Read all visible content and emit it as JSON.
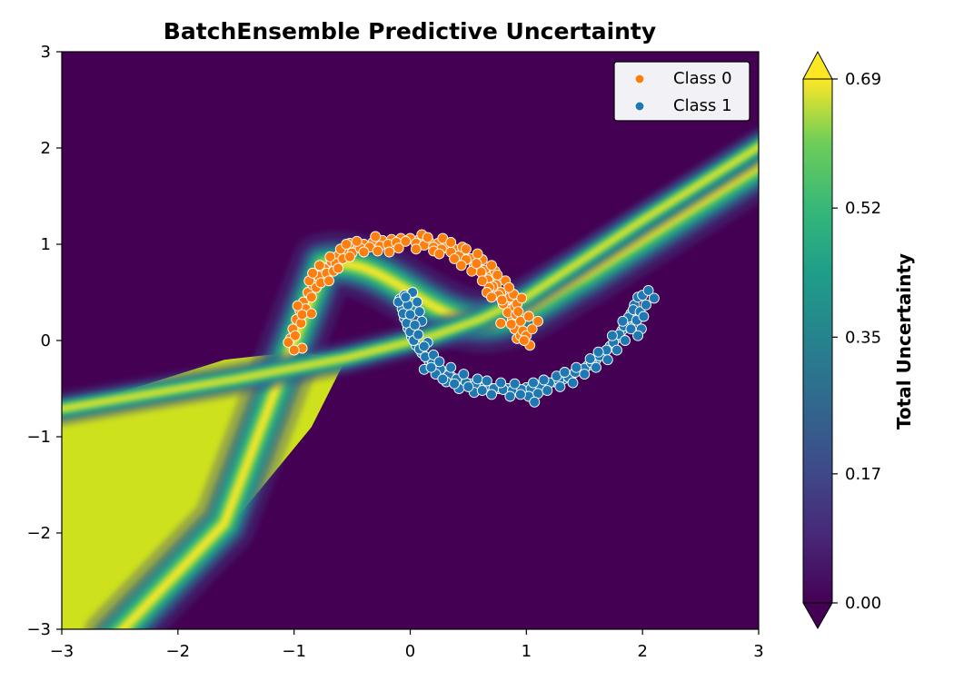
{
  "chart_data": {
    "type": "scatter",
    "title": "BatchEnsemble Predictive Uncertainty",
    "xlabel": "",
    "ylabel": "",
    "xlim": [
      -3,
      3
    ],
    "ylim": [
      -3,
      3
    ],
    "xticks": [
      -3,
      -2,
      -1,
      0,
      1,
      2,
      3
    ],
    "yticks": [
      -3,
      -2,
      -1,
      0,
      1,
      2,
      3
    ],
    "xtick_labels": [
      "−3",
      "−2",
      "−1",
      "0",
      "1",
      "2",
      "3"
    ],
    "ytick_labels": [
      "−3",
      "−2",
      "−1",
      "0",
      "1",
      "2",
      "3"
    ],
    "background": {
      "type": "filled-contour",
      "colormap": "viridis",
      "quantity": "Total Uncertainty",
      "range": [
        0.0,
        0.69
      ],
      "boundary": "y ≈ 0.5 − 0.3·sin(2.5·x) near the moons; linear extensions toward (3, 1.8) and (−3, −4); separate near-constant region at ~0.63 in the lower-left",
      "colors": [
        "#440154",
        "#3b528b",
        "#21918c",
        "#5ec962",
        "#fde725"
      ]
    },
    "colorbar": {
      "label": "Total Uncertainty",
      "ticks": [
        0.0,
        0.17,
        0.35,
        0.52,
        0.69
      ],
      "tick_labels": [
        "0.00",
        "0.17",
        "0.35",
        "0.52",
        "0.69"
      ],
      "extend": "both"
    },
    "legend": {
      "position": "top-right",
      "entries": [
        "Class 0",
        "Class 1"
      ]
    },
    "series": [
      {
        "name": "Class 0",
        "color": "#ff7f0e",
        "points": [
          [
            -1.03,
            0.02
          ],
          [
            -1.01,
            0.12
          ],
          [
            -0.98,
            0.22
          ],
          [
            -0.95,
            0.31
          ],
          [
            -0.92,
            0.4
          ],
          [
            -0.88,
            0.5
          ],
          [
            -0.84,
            0.58
          ],
          [
            -0.79,
            0.67
          ],
          [
            -0.74,
            0.75
          ],
          [
            -0.68,
            0.82
          ],
          [
            -0.62,
            0.88
          ],
          [
            -0.55,
            0.93
          ],
          [
            -0.48,
            0.97
          ],
          [
            -0.4,
            1.0
          ],
          [
            -0.32,
            1.02
          ],
          [
            -0.24,
            1.04
          ],
          [
            -0.16,
            1.05
          ],
          [
            -0.08,
            1.06
          ],
          [
            0.0,
            1.06
          ],
          [
            0.08,
            1.05
          ],
          [
            0.16,
            1.03
          ],
          [
            0.24,
            1.01
          ],
          [
            0.31,
            0.98
          ],
          [
            0.38,
            0.95
          ],
          [
            0.45,
            0.9
          ],
          [
            0.52,
            0.85
          ],
          [
            0.58,
            0.79
          ],
          [
            0.64,
            0.73
          ],
          [
            0.69,
            0.66
          ],
          [
            0.74,
            0.58
          ],
          [
            0.78,
            0.5
          ],
          [
            0.82,
            0.41
          ],
          [
            0.85,
            0.32
          ],
          [
            0.88,
            0.22
          ],
          [
            0.9,
            0.12
          ],
          [
            0.92,
            0.02
          ],
          [
            -0.99,
            0.05
          ],
          [
            -0.94,
            0.18
          ],
          [
            -0.9,
            0.33
          ],
          [
            -0.85,
            0.45
          ],
          [
            -0.81,
            0.55
          ],
          [
            -0.72,
            0.7
          ],
          [
            -0.64,
            0.8
          ],
          [
            -0.58,
            0.85
          ],
          [
            -0.5,
            0.91
          ],
          [
            -0.43,
            0.96
          ],
          [
            -0.35,
            0.97
          ],
          [
            -0.26,
            0.98
          ],
          [
            -0.19,
            1.0
          ],
          [
            -0.12,
            1.02
          ],
          [
            -0.04,
            1.03
          ],
          [
            0.05,
            1.01
          ],
          [
            0.12,
            0.99
          ],
          [
            0.2,
            0.97
          ],
          [
            0.27,
            0.95
          ],
          [
            0.35,
            0.92
          ],
          [
            0.42,
            0.88
          ],
          [
            0.48,
            0.84
          ],
          [
            0.55,
            0.77
          ],
          [
            0.61,
            0.71
          ],
          [
            0.67,
            0.63
          ],
          [
            0.71,
            0.56
          ],
          [
            0.76,
            0.47
          ],
          [
            0.8,
            0.38
          ],
          [
            0.84,
            0.29
          ],
          [
            0.87,
            0.17
          ],
          [
            0.95,
            0.05
          ],
          [
            -0.93,
            0.27
          ],
          [
            -0.87,
            0.62
          ],
          [
            -0.78,
            0.78
          ],
          [
            -0.69,
            0.87
          ],
          [
            -0.6,
            0.95
          ],
          [
            -0.52,
            1.01
          ],
          [
            -0.3,
            1.08
          ],
          [
            0.1,
            1.1
          ],
          [
            0.28,
            1.06
          ],
          [
            0.45,
            0.97
          ],
          [
            0.62,
            0.84
          ],
          [
            0.73,
            0.72
          ],
          [
            0.86,
            0.45
          ],
          [
            0.91,
            0.27
          ],
          [
            0.97,
            0.1
          ],
          [
            1.03,
            -0.05
          ],
          [
            -0.97,
            0.36
          ],
          [
            -0.77,
            0.6
          ],
          [
            -0.66,
            0.72
          ],
          [
            -0.4,
            0.92
          ],
          [
            -0.1,
            0.96
          ],
          [
            0.2,
            0.93
          ],
          [
            0.38,
            0.85
          ],
          [
            0.53,
            0.72
          ],
          [
            0.68,
            0.55
          ],
          [
            0.79,
            0.42
          ],
          [
            0.9,
            0.35
          ],
          [
            -1.05,
            -0.02
          ],
          [
            -0.84,
            0.7
          ],
          [
            -0.46,
            1.03
          ],
          [
            0.35,
            1.02
          ],
          [
            0.7,
            0.78
          ],
          [
            0.82,
            0.62
          ],
          [
            0.95,
            0.2
          ],
          [
            1.0,
            0.05
          ],
          [
            -0.85,
            0.28
          ],
          [
            -0.52,
            0.87
          ],
          [
            0.15,
            1.07
          ],
          [
            0.58,
            0.9
          ],
          [
            0.75,
            0.68
          ],
          [
            0.89,
            0.48
          ],
          [
            0.92,
            0.38
          ],
          [
            0.98,
            0.0
          ],
          [
            1.05,
            0.12
          ],
          [
            -0.93,
            -0.08
          ],
          [
            -0.7,
            0.62
          ],
          [
            -0.28,
            0.93
          ],
          [
            0.44,
            0.78
          ],
          [
            0.62,
            0.62
          ],
          [
            0.85,
            0.55
          ],
          [
            1.1,
            0.2
          ],
          [
            -0.55,
            1.0
          ],
          [
            0.25,
            0.9
          ],
          [
            0.66,
            0.5
          ],
          [
            0.78,
            0.18
          ],
          [
            0.96,
            0.44
          ],
          [
            -1.0,
            -0.1
          ],
          [
            0.48,
            0.95
          ],
          [
            0.05,
            0.95
          ],
          [
            -0.18,
            0.92
          ],
          [
            -0.62,
            0.75
          ],
          [
            0.57,
            0.8
          ],
          [
            0.7,
            0.45
          ],
          [
            0.93,
            0.3
          ],
          [
            1.02,
            0.25
          ]
        ]
      },
      {
        "name": "Class 1",
        "color": "#1f77b4",
        "points": [
          [
            -0.09,
            0.43
          ],
          [
            -0.07,
            0.33
          ],
          [
            -0.05,
            0.23
          ],
          [
            -0.02,
            0.13
          ],
          [
            0.01,
            0.04
          ],
          [
            0.05,
            -0.05
          ],
          [
            0.1,
            -0.13
          ],
          [
            0.16,
            -0.21
          ],
          [
            0.22,
            -0.27
          ],
          [
            0.29,
            -0.33
          ],
          [
            0.36,
            -0.38
          ],
          [
            0.44,
            -0.42
          ],
          [
            0.52,
            -0.45
          ],
          [
            0.6,
            -0.47
          ],
          [
            0.68,
            -0.49
          ],
          [
            0.76,
            -0.5
          ],
          [
            0.84,
            -0.5
          ],
          [
            0.92,
            -0.5
          ],
          [
            1.0,
            -0.49
          ],
          [
            1.08,
            -0.48
          ],
          [
            1.16,
            -0.46
          ],
          [
            1.24,
            -0.43
          ],
          [
            1.32,
            -0.4
          ],
          [
            1.39,
            -0.36
          ],
          [
            1.46,
            -0.31
          ],
          [
            1.53,
            -0.26
          ],
          [
            1.6,
            -0.2
          ],
          [
            1.66,
            -0.13
          ],
          [
            1.72,
            -0.06
          ],
          [
            1.77,
            0.02
          ],
          [
            1.82,
            0.1
          ],
          [
            1.86,
            0.19
          ],
          [
            1.9,
            0.28
          ],
          [
            1.93,
            0.37
          ],
          [
            1.96,
            0.45
          ],
          [
            2.0,
            0.47
          ],
          [
            -0.1,
            0.4
          ],
          [
            -0.06,
            0.28
          ],
          [
            -0.03,
            0.18
          ],
          [
            0.0,
            0.09
          ],
          [
            0.03,
            0.0
          ],
          [
            0.08,
            -0.09
          ],
          [
            0.13,
            -0.17
          ],
          [
            0.19,
            -0.24
          ],
          [
            0.26,
            -0.3
          ],
          [
            0.33,
            -0.36
          ],
          [
            0.4,
            -0.4
          ],
          [
            0.48,
            -0.44
          ],
          [
            0.56,
            -0.46
          ],
          [
            0.64,
            -0.48
          ],
          [
            0.72,
            -0.5
          ],
          [
            0.8,
            -0.51
          ],
          [
            0.88,
            -0.52
          ],
          [
            0.96,
            -0.51
          ],
          [
            1.04,
            -0.5
          ],
          [
            1.12,
            -0.47
          ],
          [
            1.2,
            -0.44
          ],
          [
            1.28,
            -0.41
          ],
          [
            1.36,
            -0.38
          ],
          [
            1.42,
            -0.33
          ],
          [
            1.5,
            -0.29
          ],
          [
            1.56,
            -0.23
          ],
          [
            1.63,
            -0.16
          ],
          [
            1.69,
            -0.1
          ],
          [
            1.75,
            -0.02
          ],
          [
            1.8,
            0.06
          ],
          [
            1.84,
            0.15
          ],
          [
            1.88,
            0.24
          ],
          [
            1.92,
            0.32
          ],
          [
            -0.05,
            0.47
          ],
          [
            0.06,
            0.4
          ],
          [
            0.1,
            0.2
          ],
          [
            0.15,
            -0.02
          ],
          [
            0.12,
            -0.3
          ],
          [
            0.22,
            -0.35
          ],
          [
            0.31,
            -0.43
          ],
          [
            0.42,
            -0.5
          ],
          [
            0.55,
            -0.54
          ],
          [
            0.7,
            -0.56
          ],
          [
            0.86,
            -0.58
          ],
          [
            1.02,
            -0.58
          ],
          [
            1.1,
            -0.55
          ],
          [
            1.18,
            -0.52
          ],
          [
            1.29,
            -0.48
          ],
          [
            1.4,
            -0.44
          ],
          [
            1.5,
            -0.35
          ],
          [
            1.6,
            -0.28
          ],
          [
            1.7,
            -0.2
          ],
          [
            1.78,
            -0.1
          ],
          [
            1.85,
            0.0
          ],
          [
            1.9,
            0.12
          ],
          [
            1.95,
            0.21
          ],
          [
            1.98,
            0.3
          ],
          [
            2.03,
            0.37
          ],
          [
            2.05,
            0.52
          ],
          [
            2.1,
            0.44
          ],
          [
            0.02,
            0.5
          ],
          [
            -0.02,
            0.37
          ],
          [
            0.0,
            0.27
          ],
          [
            0.04,
            0.16
          ],
          [
            0.07,
            0.06
          ],
          [
            0.12,
            -0.06
          ],
          [
            0.2,
            -0.15
          ],
          [
            0.25,
            -0.22
          ],
          [
            0.35,
            -0.28
          ],
          [
            0.46,
            -0.35
          ],
          [
            0.58,
            -0.4
          ],
          [
            0.66,
            -0.42
          ],
          [
            0.78,
            -0.44
          ],
          [
            0.9,
            -0.45
          ],
          [
            1.06,
            -0.44
          ],
          [
            1.15,
            -0.41
          ],
          [
            1.26,
            -0.37
          ],
          [
            1.33,
            -0.33
          ],
          [
            1.43,
            -0.28
          ],
          [
            1.55,
            -0.19
          ],
          [
            1.62,
            -0.12
          ],
          [
            1.74,
            0.05
          ],
          [
            1.83,
            0.2
          ],
          [
            1.99,
            0.12
          ],
          [
            2.01,
            0.25
          ],
          [
            1.07,
            -0.64
          ],
          [
            0.95,
            -0.56
          ],
          [
            0.62,
            -0.52
          ],
          [
            0.5,
            -0.48
          ],
          [
            0.38,
            -0.45
          ],
          [
            0.28,
            -0.4
          ],
          [
            0.18,
            -0.28
          ],
          [
            0.08,
            0.3
          ],
          [
            -0.04,
            0.45
          ],
          [
            1.96,
            0.05
          ]
        ]
      }
    ]
  }
}
